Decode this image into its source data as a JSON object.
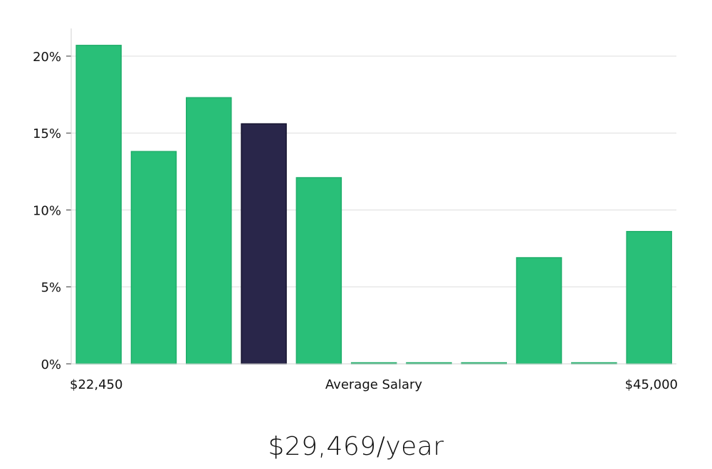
{
  "chart_data": {
    "type": "bar",
    "title": "",
    "xlabel": "Average Salary",
    "ylabel": "",
    "x_min_label": "$22,450",
    "x_max_label": "$45,000",
    "ylim": [
      0,
      21.8
    ],
    "yticks": [
      {
        "value": 0,
        "label": "0%"
      },
      {
        "value": 5,
        "label": "5%"
      },
      {
        "value": 10,
        "label": "10%"
      },
      {
        "value": 15,
        "label": "15%"
      },
      {
        "value": 20,
        "label": "20%"
      }
    ],
    "grid": true,
    "values": [
      20.7,
      13.8,
      17.3,
      15.6,
      12.1,
      0,
      0,
      0,
      6.9,
      0,
      8.6
    ],
    "highlight_index": 3,
    "colors": {
      "bar": "#29bf78",
      "bar_edge": "#1fae6a",
      "highlight": "#29264a",
      "highlight_edge": "#15132e",
      "grid": "#dddddd",
      "axis": "#d0d0d0"
    }
  },
  "summary": {
    "salary_text": "$29,469/year"
  }
}
